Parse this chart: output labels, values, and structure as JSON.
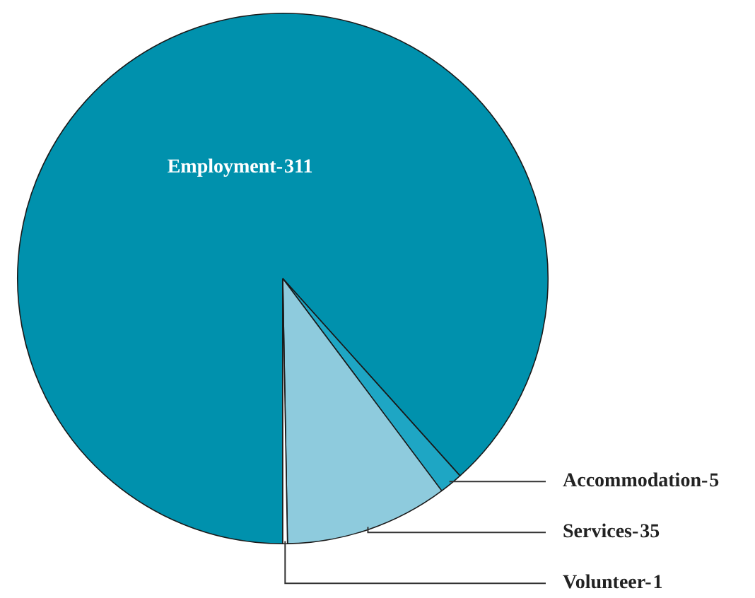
{
  "chart_data": {
    "type": "pie",
    "categories": [
      "Employment-",
      "Accommodation-",
      "Services-",
      "Volunteer-"
    ],
    "values": [
      311,
      5,
      35,
      1
    ],
    "colors": [
      "#0091ad",
      "#1ea6c4",
      "#8ecbdd",
      "#ffffff"
    ],
    "data_labels": true,
    "legend": false
  }
}
